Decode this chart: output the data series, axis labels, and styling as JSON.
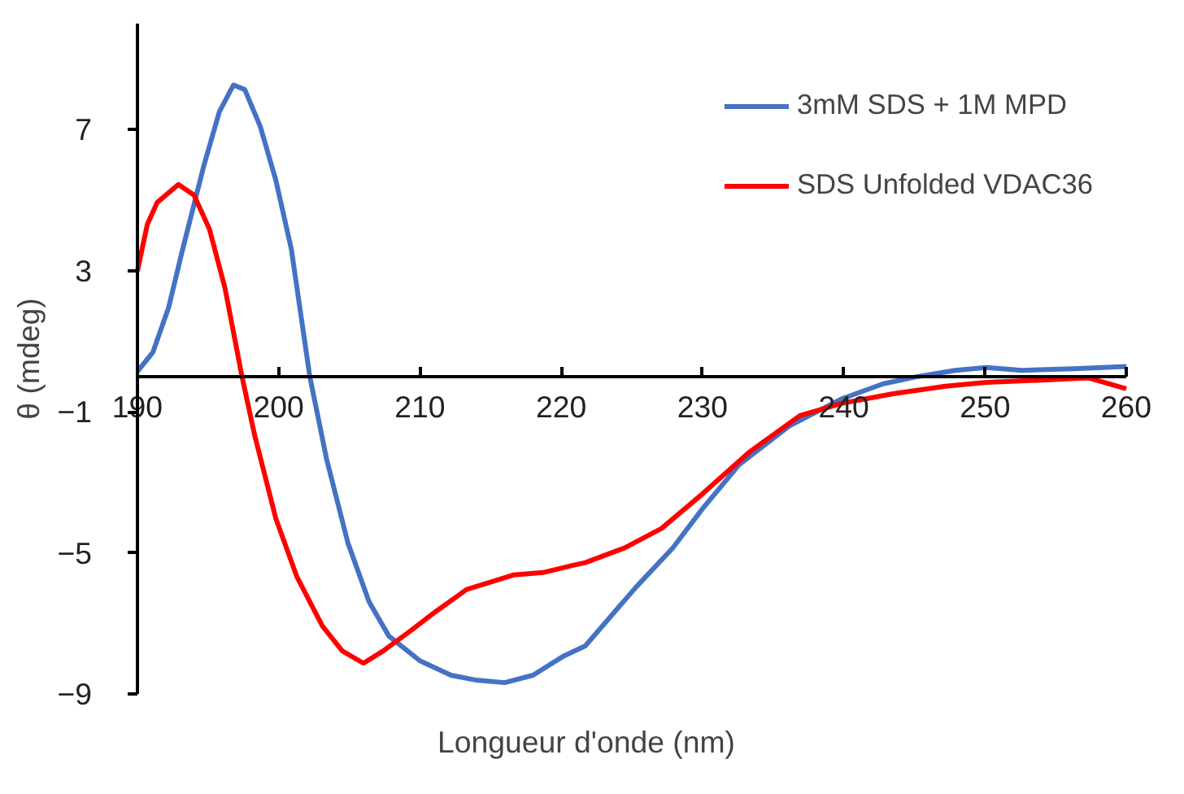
{
  "chart_data": {
    "type": "line",
    "xlabel": "Longueur d'onde (nm)",
    "ylabel": "θ (mdeg)",
    "xlim": [
      190,
      260
    ],
    "xticks": [
      190,
      200,
      210,
      220,
      230,
      240,
      250,
      260
    ],
    "ylim": [
      -9,
      10
    ],
    "yticks": [
      7,
      3,
      -1,
      -5,
      -9
    ],
    "grid": false,
    "legend": "top right",
    "line_style": "solid",
    "marker": "none",
    "series": [
      {
        "name": "3mM SDS + 1M MPD",
        "color": "#4472c4",
        "x": [
          190,
          191.1,
          192.2,
          193.2,
          194.7,
          195.8,
          196.8,
          197.6,
          198.7,
          199.8,
          200.9,
          202.2,
          203.4,
          204.9,
          206.4,
          207.8,
          210,
          212.2,
          214,
          216,
          218,
          220.2,
          221.7,
          225.3,
          227.9,
          230,
          232.6,
          236.2,
          239.9,
          242.8,
          245.3,
          247.9,
          250.1,
          252.6,
          256.3,
          260
        ],
        "values": [
          0.14,
          0.69,
          1.94,
          3.6,
          5.97,
          7.5,
          8.26,
          8.13,
          7.08,
          5.56,
          3.6,
          0,
          -2.36,
          -4.72,
          -6.39,
          -7.36,
          -8.06,
          -8.47,
          -8.61,
          -8.68,
          -8.47,
          -7.92,
          -7.64,
          -5.97,
          -4.86,
          -3.75,
          -2.5,
          -1.39,
          -0.63,
          -0.21,
          0,
          0.17,
          0.25,
          0.17,
          0.22,
          0.28
        ]
      },
      {
        "name": "SDS Unfolded VDAC36",
        "color": "#ff0000",
        "x": [
          190,
          190.7,
          191.4,
          192.9,
          194,
          195.1,
          196.2,
          197.4,
          198.3,
          199.8,
          201.3,
          203.1,
          204.5,
          206,
          207.4,
          209.3,
          211.1,
          213.3,
          216.6,
          218.7,
          220.9,
          221.7,
          224.5,
          227.1,
          230,
          233.3,
          236.9,
          239.9,
          243.5,
          247.2,
          250.1,
          253.7,
          257.3,
          260
        ],
        "values": [
          2.99,
          4.31,
          4.93,
          5.44,
          5.14,
          4.17,
          2.5,
          0,
          -1.67,
          -4.03,
          -5.69,
          -7.08,
          -7.78,
          -8.13,
          -7.78,
          -7.22,
          -6.67,
          -6.04,
          -5.63,
          -5.56,
          -5.35,
          -5.28,
          -4.86,
          -4.31,
          -3.33,
          -2.15,
          -1.11,
          -0.76,
          -0.49,
          -0.28,
          -0.17,
          -0.11,
          -0.04,
          -0.35
        ]
      }
    ]
  }
}
